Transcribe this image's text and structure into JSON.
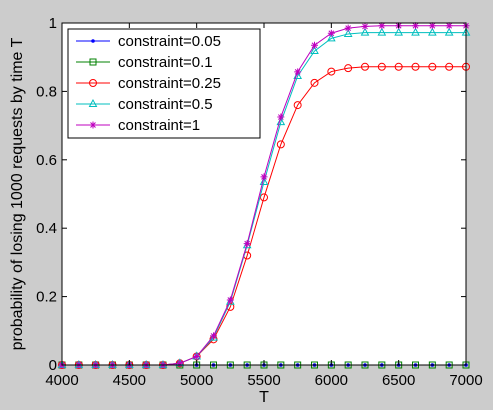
{
  "chart_data": {
    "type": "line",
    "title": "",
    "xlabel": "T",
    "ylabel": "probability of losing 1000 requests by time T",
    "xlim": [
      4000,
      7000
    ],
    "ylim": [
      0,
      1
    ],
    "xticks": [
      4000,
      4500,
      5000,
      5500,
      6000,
      6500,
      7000
    ],
    "yticks": [
      0,
      0.2,
      0.4,
      0.6,
      0.8,
      1
    ],
    "xtick_labels": [
      "4000",
      "4500",
      "5000",
      "5500",
      "6000",
      "6500",
      "7000"
    ],
    "ytick_labels": [
      "0",
      "0.2",
      "0.4",
      "0.6",
      "0.8",
      "1"
    ],
    "grid": false,
    "legend_position": "top-left",
    "x": [
      4000,
      4125,
      4250,
      4375,
      4500,
      4625,
      4750,
      4875,
      5000,
      5125,
      5250,
      5375,
      5500,
      5625,
      5750,
      5875,
      6000,
      6125,
      6250,
      6375,
      6500,
      6625,
      6750,
      6875,
      7000
    ],
    "series": [
      {
        "name": "constraint=0.05",
        "color": "#0000ff",
        "marker": "point",
        "values": [
          0,
          0,
          0,
          0,
          0,
          0,
          0,
          0,
          0,
          0,
          0,
          0,
          0,
          0,
          0,
          0,
          0,
          0,
          0,
          0,
          0,
          0,
          0,
          0,
          0
        ]
      },
      {
        "name": "constraint=0.1",
        "color": "#008000",
        "marker": "square",
        "values": [
          0,
          0,
          0,
          0,
          0,
          0,
          0,
          0,
          0,
          0,
          0,
          0,
          0,
          0,
          0,
          0,
          0,
          0,
          0,
          0,
          0,
          0,
          0,
          0,
          0
        ]
      },
      {
        "name": "constraint=0.25",
        "color": "#ff0000",
        "marker": "circle",
        "values": [
          0,
          0,
          0,
          0,
          0,
          0,
          0,
          0.005,
          0.025,
          0.075,
          0.17,
          0.32,
          0.49,
          0.645,
          0.76,
          0.825,
          0.858,
          0.868,
          0.872,
          0.872,
          0.872,
          0.872,
          0.872,
          0.872,
          0.872
        ]
      },
      {
        "name": "constraint=0.5",
        "color": "#00bfbf",
        "marker": "triangle",
        "values": [
          0,
          0,
          0,
          0,
          0,
          0,
          0,
          0.005,
          0.025,
          0.08,
          0.185,
          0.35,
          0.535,
          0.71,
          0.845,
          0.918,
          0.955,
          0.968,
          0.972,
          0.972,
          0.972,
          0.972,
          0.972,
          0.972,
          0.972
        ]
      },
      {
        "name": "constraint=1",
        "color": "#bf00bf",
        "marker": "star",
        "values": [
          0,
          0,
          0,
          0,
          0,
          0,
          0,
          0.005,
          0.025,
          0.085,
          0.19,
          0.355,
          0.55,
          0.725,
          0.857,
          0.935,
          0.97,
          0.985,
          0.99,
          0.992,
          0.992,
          0.992,
          0.992,
          0.992,
          0.992
        ]
      }
    ]
  }
}
